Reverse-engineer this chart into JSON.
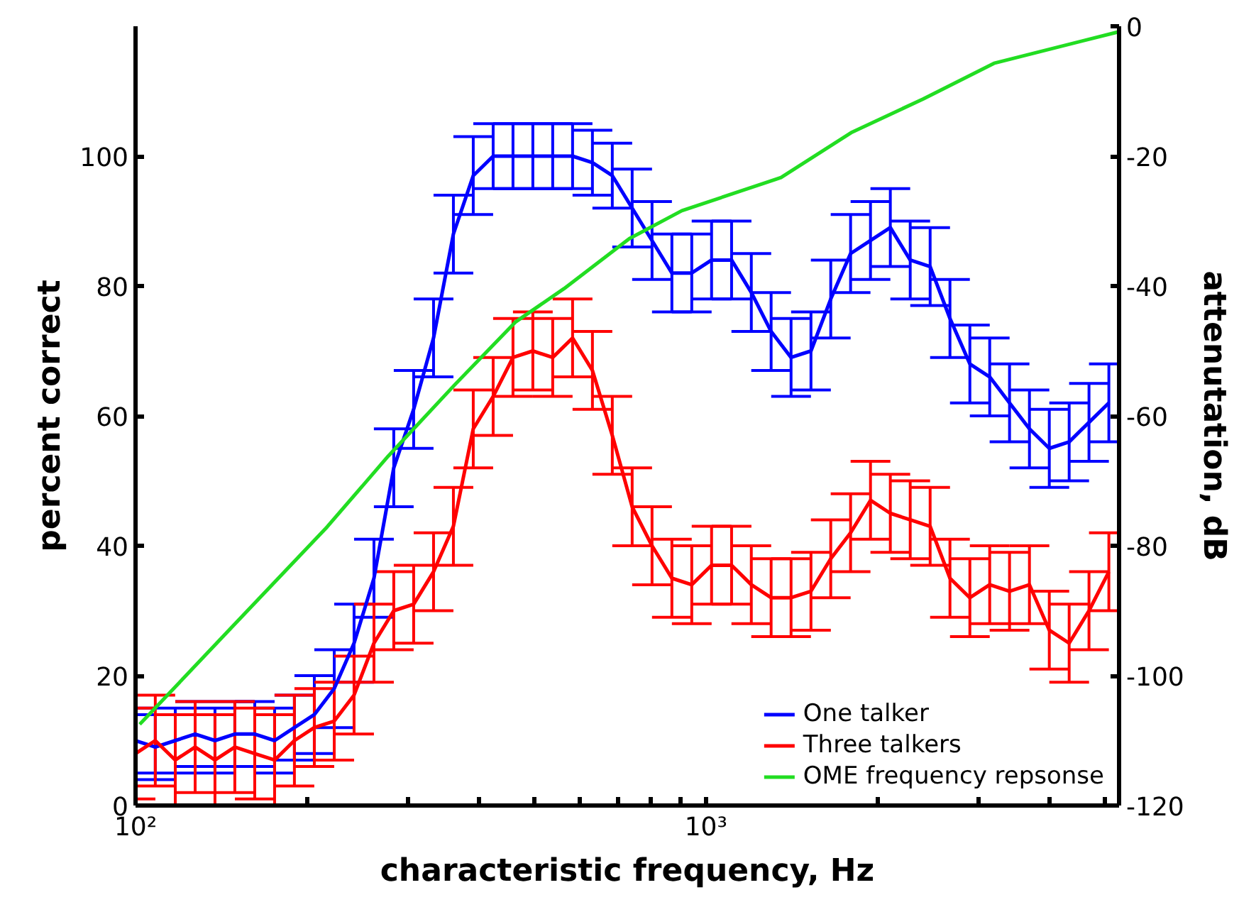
{
  "chart_data": {
    "type": "line",
    "xlabel": "characteristic frequency, Hz",
    "ylabel": "percent correct",
    "y2label": "attenutation, dB",
    "log": "x",
    "xlim": [
      100,
      5300
    ],
    "ylim": [
      0,
      120
    ],
    "y2lim": [
      -120,
      0
    ],
    "xticks": [
      {
        "value": 100,
        "label": "10²"
      },
      {
        "value": 200,
        "label": null
      },
      {
        "value": 300,
        "label": null
      },
      {
        "value": 400,
        "label": null
      },
      {
        "value": 500,
        "label": null
      },
      {
        "value": 600,
        "label": null
      },
      {
        "value": 700,
        "label": null
      },
      {
        "value": 800,
        "label": null
      },
      {
        "value": 900,
        "label": null
      },
      {
        "value": 1000,
        "label": "10³"
      },
      {
        "value": 2000,
        "label": null
      },
      {
        "value": 3000,
        "label": null
      },
      {
        "value": 4000,
        "label": null
      },
      {
        "value": 5000,
        "label": null
      }
    ],
    "yticks": [
      0,
      20,
      40,
      60,
      80,
      100
    ],
    "y2ticks": [
      0,
      -20,
      -40,
      -60,
      -80,
      -100,
      -120
    ],
    "grid": false,
    "legend": "bottom right",
    "marker": "none",
    "line_style": "solid",
    "x": [
      100,
      108.3,
      117.4,
      127.2,
      137.8,
      149.3,
      161.8,
      175.3,
      189.9,
      205.8,
      223.0,
      241.6,
      261.8,
      283.6,
      307.3,
      333.0,
      360.8,
      390.9,
      423.6,
      458.9,
      497.2,
      538.7,
      583.7,
      632.4,
      685.2,
      742.4,
      804.4,
      871.5,
      944.3,
      1023,
      1109,
      1201,
      1301,
      1410,
      1528,
      1655,
      1793,
      1943,
      2105,
      2281,
      2472,
      2678,
      2902,
      3144,
      3406,
      3691,
      3999,
      4333,
      4694,
      5086
    ],
    "series": [
      {
        "name": "One talker",
        "color": "#0000ff",
        "values": [
          10,
          9,
          10,
          11,
          10,
          11,
          11,
          10,
          12,
          14,
          18,
          25,
          35,
          52,
          61,
          72,
          88,
          97,
          100,
          100,
          100,
          100,
          100,
          99,
          97,
          92,
          87,
          82,
          82,
          84,
          84,
          79,
          73,
          69,
          70,
          78,
          85,
          87,
          89,
          84,
          83,
          75,
          68,
          66,
          62,
          58,
          55,
          56,
          59,
          62
        ],
        "errors": [
          5,
          5,
          5,
          5,
          5,
          5,
          5,
          5,
          5,
          6,
          6,
          6,
          6,
          6,
          6,
          6,
          6,
          6,
          5,
          5,
          5,
          5,
          5,
          5,
          5,
          6,
          6,
          6,
          6,
          6,
          6,
          6,
          6,
          6,
          6,
          6,
          6,
          6,
          6,
          6,
          6,
          6,
          6,
          6,
          6,
          6,
          6,
          6,
          6,
          6
        ]
      },
      {
        "name": "Three talkers",
        "color": "#ff0000",
        "values": [
          8,
          10,
          7,
          9,
          7,
          9,
          8,
          7,
          10,
          12,
          13,
          17,
          25,
          30,
          31,
          36,
          43,
          58,
          63,
          69,
          70,
          69,
          72,
          67,
          57,
          46,
          40,
          35,
          34,
          37,
          37,
          34,
          32,
          32,
          33,
          38,
          42,
          47,
          45,
          44,
          43,
          35,
          32,
          34,
          33,
          34,
          27,
          25,
          30,
          36
        ],
        "errors": [
          7,
          7,
          7,
          7,
          7,
          7,
          7,
          7,
          7,
          6,
          6,
          6,
          6,
          6,
          6,
          6,
          6,
          6,
          6,
          6,
          6,
          6,
          6,
          6,
          6,
          6,
          6,
          6,
          6,
          6,
          6,
          6,
          6,
          6,
          6,
          6,
          6,
          6,
          6,
          6,
          6,
          6,
          6,
          6,
          6,
          6,
          6,
          6,
          6,
          6
        ]
      },
      {
        "name": "OME frequency repsonse",
        "color": "#22dd22",
        "axis": "y2",
        "x": [
          101.7,
          145.1,
          216.7,
          277.3,
          362.8,
          464.2,
          564.0,
          734.0,
          907.3,
          1354,
          1804,
          2403,
          3199,
          5265
        ],
        "values": [
          -107.5,
          -93.2,
          -77.1,
          -66.2,
          -55.2,
          -45.5,
          -40.4,
          -32.7,
          -28.4,
          -23.3,
          -16.3,
          -11.2,
          -5.7,
          -0.9
        ]
      }
    ]
  }
}
